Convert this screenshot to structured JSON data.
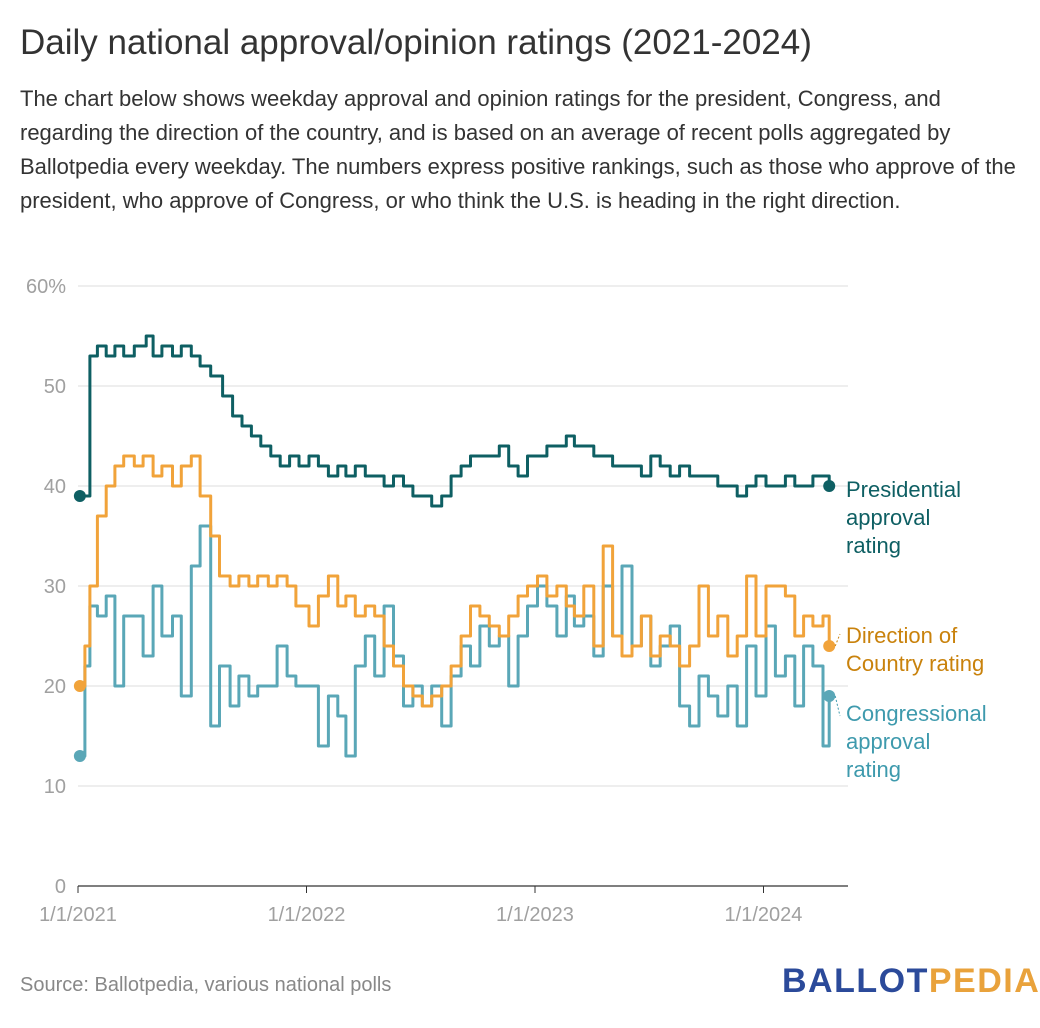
{
  "title": "Daily national approval/opinion ratings (2021-2024)",
  "description": "The chart below shows weekday approval and opinion ratings for the president, Congress, and regarding the direction of the country, and is based on an average of recent polls aggregated by Ballotpedia every weekday. The numbers express positive rankings, such as those who approve of the president, who approve of Congress, or who think the U.S. is heading in the right direction.",
  "source": "Source: Ballotpedia, various national polls",
  "brand": {
    "part1": "BALLOT",
    "part2": "PEDIA",
    "color1": "#2b4a9a",
    "color2": "#e9a23b"
  },
  "chart_data": {
    "type": "line",
    "x_start": "2021-01-01",
    "x_end": "2024-05-15",
    "ylim": [
      0,
      60
    ],
    "y_ticks": [
      0,
      10,
      20,
      30,
      40,
      50,
      60
    ],
    "y_tick_labels": [
      "0",
      "10",
      "20",
      "30",
      "40",
      "50",
      "60%"
    ],
    "x_ticks": [
      "2021-01-01",
      "2022-01-01",
      "2023-01-01",
      "2024-01-01"
    ],
    "x_tick_labels": [
      "1/1/2021",
      "1/1/2022",
      "1/1/2023",
      "1/1/2024"
    ],
    "grid": true,
    "legend": "labels at right end of each line",
    "series": [
      {
        "name": "Presidential approval rating",
        "color": "#0e5f63",
        "points": [
          [
            "2021-01-04",
            39
          ],
          [
            "2021-01-20",
            53
          ],
          [
            "2021-02-01",
            54
          ],
          [
            "2021-02-15",
            53
          ],
          [
            "2021-03-01",
            54
          ],
          [
            "2021-03-15",
            53
          ],
          [
            "2021-04-01",
            54
          ],
          [
            "2021-04-20",
            55
          ],
          [
            "2021-05-01",
            53
          ],
          [
            "2021-05-15",
            54
          ],
          [
            "2021-06-01",
            53
          ],
          [
            "2021-06-15",
            54
          ],
          [
            "2021-07-01",
            53
          ],
          [
            "2021-07-15",
            52
          ],
          [
            "2021-08-01",
            51
          ],
          [
            "2021-08-20",
            49
          ],
          [
            "2021-09-05",
            47
          ],
          [
            "2021-09-20",
            46
          ],
          [
            "2021-10-05",
            45
          ],
          [
            "2021-10-20",
            44
          ],
          [
            "2021-11-05",
            43
          ],
          [
            "2021-11-20",
            42
          ],
          [
            "2021-12-05",
            43
          ],
          [
            "2021-12-20",
            42
          ],
          [
            "2022-01-05",
            43
          ],
          [
            "2022-01-20",
            42
          ],
          [
            "2022-02-05",
            41
          ],
          [
            "2022-02-20",
            42
          ],
          [
            "2022-03-05",
            41
          ],
          [
            "2022-03-20",
            42
          ],
          [
            "2022-04-05",
            41
          ],
          [
            "2022-04-20",
            41
          ],
          [
            "2022-05-05",
            40
          ],
          [
            "2022-05-20",
            41
          ],
          [
            "2022-06-05",
            40
          ],
          [
            "2022-06-20",
            39
          ],
          [
            "2022-07-05",
            39
          ],
          [
            "2022-07-20",
            38
          ],
          [
            "2022-08-05",
            39
          ],
          [
            "2022-08-20",
            41
          ],
          [
            "2022-09-05",
            42
          ],
          [
            "2022-09-20",
            43
          ],
          [
            "2022-10-05",
            43
          ],
          [
            "2022-10-20",
            43
          ],
          [
            "2022-11-05",
            44
          ],
          [
            "2022-11-20",
            42
          ],
          [
            "2022-12-05",
            41
          ],
          [
            "2022-12-20",
            43
          ],
          [
            "2023-01-05",
            43
          ],
          [
            "2023-01-20",
            44
          ],
          [
            "2023-02-05",
            44
          ],
          [
            "2023-02-20",
            45
          ],
          [
            "2023-03-05",
            44
          ],
          [
            "2023-03-20",
            44
          ],
          [
            "2023-04-05",
            43
          ],
          [
            "2023-04-20",
            43
          ],
          [
            "2023-05-05",
            42
          ],
          [
            "2023-05-20",
            42
          ],
          [
            "2023-06-05",
            42
          ],
          [
            "2023-06-20",
            41
          ],
          [
            "2023-07-05",
            43
          ],
          [
            "2023-07-20",
            42
          ],
          [
            "2023-08-05",
            41
          ],
          [
            "2023-08-20",
            42
          ],
          [
            "2023-09-05",
            41
          ],
          [
            "2023-09-20",
            41
          ],
          [
            "2023-10-05",
            41
          ],
          [
            "2023-10-20",
            40
          ],
          [
            "2023-11-05",
            40
          ],
          [
            "2023-11-20",
            39
          ],
          [
            "2023-12-05",
            40
          ],
          [
            "2023-12-20",
            41
          ],
          [
            "2024-01-05",
            40
          ],
          [
            "2024-01-20",
            40
          ],
          [
            "2024-02-05",
            41
          ],
          [
            "2024-02-20",
            40
          ],
          [
            "2024-03-05",
            40
          ],
          [
            "2024-03-20",
            41
          ],
          [
            "2024-04-05",
            41
          ],
          [
            "2024-04-15",
            40
          ]
        ]
      },
      {
        "name": "Direction of Country rating",
        "color": "#f1a33a",
        "points": [
          [
            "2021-01-04",
            20
          ],
          [
            "2021-01-12",
            24
          ],
          [
            "2021-01-20",
            30
          ],
          [
            "2021-02-01",
            37
          ],
          [
            "2021-02-15",
            40
          ],
          [
            "2021-03-01",
            42
          ],
          [
            "2021-03-15",
            43
          ],
          [
            "2021-04-01",
            42
          ],
          [
            "2021-04-15",
            43
          ],
          [
            "2021-05-01",
            41
          ],
          [
            "2021-05-15",
            42
          ],
          [
            "2021-06-01",
            40
          ],
          [
            "2021-06-15",
            42
          ],
          [
            "2021-07-01",
            43
          ],
          [
            "2021-07-15",
            39
          ],
          [
            "2021-08-01",
            35
          ],
          [
            "2021-08-15",
            31
          ],
          [
            "2021-09-01",
            30
          ],
          [
            "2021-09-15",
            31
          ],
          [
            "2021-10-01",
            30
          ],
          [
            "2021-10-15",
            31
          ],
          [
            "2021-11-01",
            30
          ],
          [
            "2021-11-15",
            31
          ],
          [
            "2021-12-01",
            30
          ],
          [
            "2021-12-15",
            28
          ],
          [
            "2022-01-05",
            26
          ],
          [
            "2022-01-20",
            29
          ],
          [
            "2022-02-05",
            31
          ],
          [
            "2022-02-20",
            28
          ],
          [
            "2022-03-05",
            29
          ],
          [
            "2022-03-20",
            27
          ],
          [
            "2022-04-05",
            28
          ],
          [
            "2022-04-20",
            27
          ],
          [
            "2022-05-05",
            24
          ],
          [
            "2022-05-20",
            22
          ],
          [
            "2022-06-05",
            20
          ],
          [
            "2022-06-20",
            19
          ],
          [
            "2022-07-05",
            18
          ],
          [
            "2022-07-20",
            19
          ],
          [
            "2022-08-05",
            20
          ],
          [
            "2022-08-20",
            22
          ],
          [
            "2022-09-05",
            25
          ],
          [
            "2022-09-20",
            28
          ],
          [
            "2022-10-05",
            27
          ],
          [
            "2022-10-20",
            26
          ],
          [
            "2022-11-05",
            25
          ],
          [
            "2022-11-20",
            27
          ],
          [
            "2022-12-05",
            29
          ],
          [
            "2022-12-20",
            30
          ],
          [
            "2023-01-05",
            31
          ],
          [
            "2023-01-20",
            29
          ],
          [
            "2023-02-05",
            30
          ],
          [
            "2023-02-20",
            28
          ],
          [
            "2023-03-05",
            27
          ],
          [
            "2023-03-20",
            30
          ],
          [
            "2023-04-05",
            24
          ],
          [
            "2023-04-20",
            34
          ],
          [
            "2023-05-05",
            25
          ],
          [
            "2023-05-20",
            23
          ],
          [
            "2023-06-05",
            24
          ],
          [
            "2023-06-20",
            27
          ],
          [
            "2023-07-05",
            23
          ],
          [
            "2023-07-20",
            25
          ],
          [
            "2023-08-05",
            24
          ],
          [
            "2023-08-20",
            22
          ],
          [
            "2023-09-05",
            24
          ],
          [
            "2023-09-20",
            30
          ],
          [
            "2023-10-05",
            25
          ],
          [
            "2023-10-20",
            27
          ],
          [
            "2023-11-05",
            23
          ],
          [
            "2023-11-20",
            25
          ],
          [
            "2023-12-05",
            31
          ],
          [
            "2023-12-20",
            25
          ],
          [
            "2024-01-05",
            30
          ],
          [
            "2024-01-20",
            30
          ],
          [
            "2024-02-05",
            29
          ],
          [
            "2024-02-20",
            25
          ],
          [
            "2024-03-05",
            27
          ],
          [
            "2024-03-20",
            26
          ],
          [
            "2024-04-05",
            27
          ],
          [
            "2024-04-15",
            24
          ]
        ]
      },
      {
        "name": "Congressional approval rating",
        "color": "#5aa7b7",
        "points": [
          [
            "2021-01-04",
            13
          ],
          [
            "2021-01-12",
            22
          ],
          [
            "2021-01-20",
            28
          ],
          [
            "2021-02-01",
            27
          ],
          [
            "2021-02-15",
            29
          ],
          [
            "2021-03-01",
            20
          ],
          [
            "2021-03-15",
            27
          ],
          [
            "2021-04-01",
            27
          ],
          [
            "2021-04-15",
            23
          ],
          [
            "2021-05-01",
            30
          ],
          [
            "2021-05-15",
            25
          ],
          [
            "2021-06-01",
            27
          ],
          [
            "2021-06-15",
            19
          ],
          [
            "2021-07-01",
            32
          ],
          [
            "2021-07-15",
            36
          ],
          [
            "2021-08-01",
            16
          ],
          [
            "2021-08-15",
            22
          ],
          [
            "2021-09-01",
            18
          ],
          [
            "2021-09-15",
            21
          ],
          [
            "2021-10-01",
            19
          ],
          [
            "2021-10-15",
            20
          ],
          [
            "2021-11-01",
            20
          ],
          [
            "2021-11-15",
            24
          ],
          [
            "2021-12-01",
            21
          ],
          [
            "2021-12-15",
            20
          ],
          [
            "2022-01-05",
            20
          ],
          [
            "2022-01-20",
            14
          ],
          [
            "2022-02-05",
            19
          ],
          [
            "2022-02-20",
            17
          ],
          [
            "2022-03-05",
            13
          ],
          [
            "2022-03-20",
            22
          ],
          [
            "2022-04-05",
            25
          ],
          [
            "2022-04-20",
            21
          ],
          [
            "2022-05-05",
            28
          ],
          [
            "2022-05-20",
            23
          ],
          [
            "2022-06-05",
            18
          ],
          [
            "2022-06-20",
            20
          ],
          [
            "2022-07-05",
            18
          ],
          [
            "2022-07-20",
            20
          ],
          [
            "2022-08-05",
            16
          ],
          [
            "2022-08-20",
            21
          ],
          [
            "2022-09-05",
            24
          ],
          [
            "2022-09-20",
            22
          ],
          [
            "2022-10-05",
            26
          ],
          [
            "2022-10-20",
            24
          ],
          [
            "2022-11-05",
            25
          ],
          [
            "2022-11-20",
            20
          ],
          [
            "2022-12-05",
            25
          ],
          [
            "2022-12-20",
            28
          ],
          [
            "2023-01-05",
            30
          ],
          [
            "2023-01-20",
            28
          ],
          [
            "2023-02-05",
            25
          ],
          [
            "2023-02-20",
            29
          ],
          [
            "2023-03-05",
            26
          ],
          [
            "2023-03-20",
            27
          ],
          [
            "2023-04-05",
            23
          ],
          [
            "2023-04-20",
            30
          ],
          [
            "2023-05-05",
            25
          ],
          [
            "2023-05-20",
            32
          ],
          [
            "2023-06-05",
            24
          ],
          [
            "2023-06-20",
            27
          ],
          [
            "2023-07-05",
            22
          ],
          [
            "2023-07-20",
            24
          ],
          [
            "2023-08-05",
            26
          ],
          [
            "2023-08-20",
            18
          ],
          [
            "2023-09-05",
            16
          ],
          [
            "2023-09-20",
            21
          ],
          [
            "2023-10-05",
            19
          ],
          [
            "2023-10-20",
            17
          ],
          [
            "2023-11-05",
            20
          ],
          [
            "2023-11-20",
            16
          ],
          [
            "2023-12-05",
            24
          ],
          [
            "2023-12-20",
            19
          ],
          [
            "2024-01-05",
            26
          ],
          [
            "2024-01-20",
            21
          ],
          [
            "2024-02-05",
            23
          ],
          [
            "2024-02-20",
            18
          ],
          [
            "2024-03-05",
            24
          ],
          [
            "2024-03-20",
            22
          ],
          [
            "2024-04-05",
            14
          ],
          [
            "2024-04-15",
            19
          ]
        ]
      }
    ]
  }
}
